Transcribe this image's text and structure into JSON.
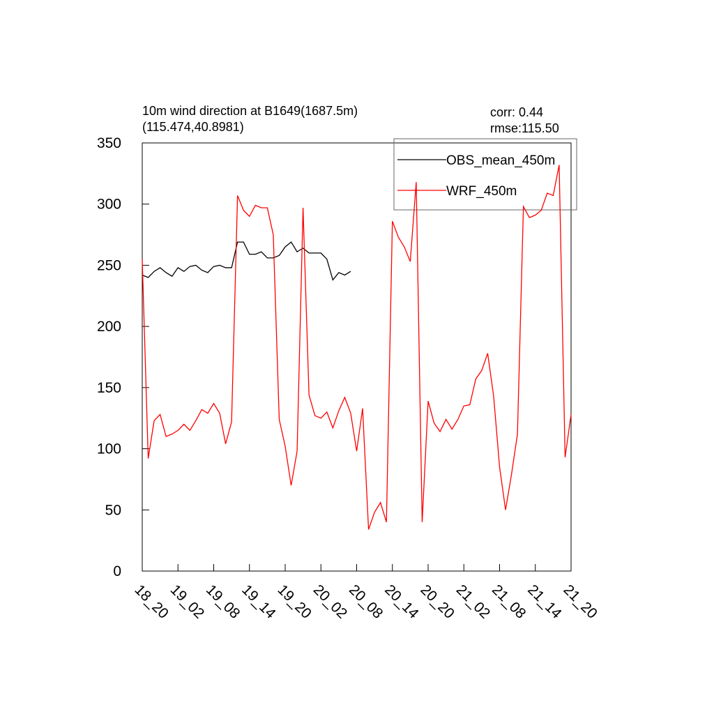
{
  "chart_data": {
    "type": "line",
    "title": "10m wind direction at B1649(1687.5m)",
    "subtitle": "(115.474,40.8981)",
    "annotations": [
      "corr:  0.44",
      "rmse:115.50"
    ],
    "x": [
      0,
      1,
      2,
      3,
      4,
      5,
      6,
      7,
      8,
      9,
      10,
      11,
      12,
      13,
      14,
      15,
      16,
      17,
      18,
      19,
      20,
      21,
      22,
      23,
      24,
      25,
      26,
      27,
      28,
      29,
      30,
      31,
      32,
      33,
      34,
      35,
      36,
      37,
      38,
      39,
      40,
      41,
      42,
      43,
      44,
      45,
      46,
      47,
      48,
      49,
      50,
      51,
      52,
      53,
      54,
      55,
      56,
      57,
      58,
      59,
      60,
      61,
      62,
      63,
      64,
      65,
      66,
      67,
      68,
      69,
      70,
      71,
      72
    ],
    "series": [
      {
        "name": "OBS_mean_450m",
        "color": "#000000",
        "values": [
          242,
          240,
          245,
          248,
          244,
          241,
          248,
          245,
          249,
          250,
          246,
          244,
          249,
          250,
          248,
          248,
          269,
          269,
          259,
          259,
          261,
          256,
          256,
          258,
          265,
          269,
          261,
          264,
          260,
          260,
          260,
          255,
          238,
          244,
          242,
          245,
          null,
          null,
          null,
          null,
          null,
          null,
          null,
          null,
          null,
          null,
          null,
          null,
          null,
          null,
          null,
          null,
          null,
          null,
          null,
          null,
          null,
          null,
          null,
          null,
          null,
          null,
          null,
          null,
          null,
          null,
          null,
          null,
          null,
          null,
          null,
          null,
          null
        ]
      },
      {
        "name": "WRF_450m",
        "color": "#ff0000",
        "values": [
          255,
          92,
          123,
          128,
          110,
          112,
          115,
          120,
          115,
          123,
          132,
          129,
          137,
          129,
          104,
          122,
          307,
          295,
          290,
          299,
          297,
          297,
          275,
          124,
          102,
          70,
          98,
          297,
          144,
          127,
          125,
          130,
          117,
          131,
          142,
          129,
          98,
          133,
          34,
          48,
          56,
          40,
          286,
          273,
          265,
          253,
          318,
          40,
          139,
          121,
          114,
          124,
          116,
          124,
          135,
          136,
          157,
          164,
          178,
          143,
          85,
          50,
          79,
          112,
          298,
          289,
          291,
          295,
          309,
          307,
          332,
          93,
          128
        ]
      }
    ],
    "xlim": [
      0,
      72
    ],
    "xticks": [
      {
        "value": 0,
        "label": "18_20"
      },
      {
        "value": 6,
        "label": "19_02"
      },
      {
        "value": 12,
        "label": "19_08"
      },
      {
        "value": 18,
        "label": "19_14"
      },
      {
        "value": 24,
        "label": "19_20"
      },
      {
        "value": 30,
        "label": "20_02"
      },
      {
        "value": 36,
        "label": "20_08"
      },
      {
        "value": 42,
        "label": "20_14"
      },
      {
        "value": 48,
        "label": "20_20"
      },
      {
        "value": 54,
        "label": "21_02"
      },
      {
        "value": 60,
        "label": "21_08"
      },
      {
        "value": 66,
        "label": "21_14"
      },
      {
        "value": 72,
        "label": "21_20"
      }
    ],
    "ylim": [
      0,
      350
    ],
    "yticks": [
      0,
      50,
      100,
      150,
      200,
      250,
      300,
      350
    ],
    "legend": "top-right"
  }
}
